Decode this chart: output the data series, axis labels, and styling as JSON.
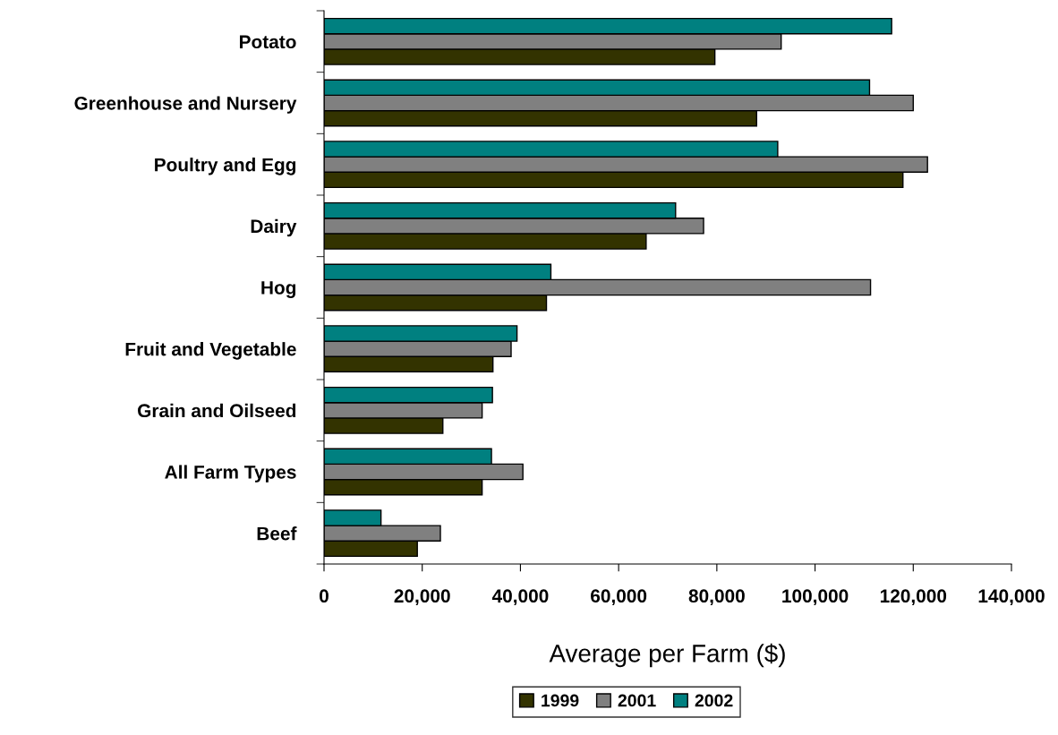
{
  "chart_data": {
    "type": "bar",
    "orientation": "horizontal",
    "xlabel": "Average per Farm ($)",
    "categories": [
      "Potato",
      "Greenhouse and Nursery",
      "Poultry and Egg",
      "Dairy",
      "Hog",
      "Fruit and Vegetable",
      "Grain and Oilseed",
      "All Farm Types",
      "Beef"
    ],
    "series": [
      {
        "name": "1999",
        "color": "#333300",
        "values": [
          79600,
          88100,
          117900,
          65600,
          45300,
          34400,
          24200,
          32200,
          19000
        ]
      },
      {
        "name": "2001",
        "color": "#808080",
        "values": [
          93100,
          120000,
          122900,
          77300,
          111300,
          38100,
          32200,
          40500,
          23700
        ]
      },
      {
        "name": "2002",
        "color": "#008080",
        "values": [
          115600,
          111100,
          92400,
          71600,
          46200,
          39300,
          34300,
          34100,
          11600
        ]
      }
    ],
    "xlim": [
      0,
      140000
    ],
    "xticks": [
      {
        "value": 0,
        "label": "0"
      },
      {
        "value": 20000,
        "label": "20,000"
      },
      {
        "value": 40000,
        "label": "40,000"
      },
      {
        "value": 60000,
        "label": "60,000"
      },
      {
        "value": 80000,
        "label": "80,000"
      },
      {
        "value": 100000,
        "label": "100,000"
      },
      {
        "value": 120000,
        "label": "120,000"
      },
      {
        "value": 140000,
        "label": "140,000"
      }
    ],
    "grid": false,
    "legend": "bottom"
  }
}
